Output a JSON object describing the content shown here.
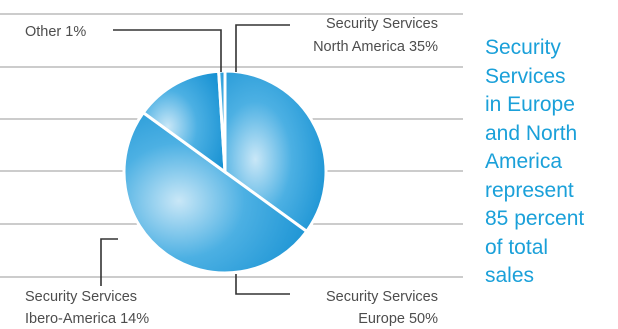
{
  "chart_data": {
    "type": "pie",
    "slices": [
      {
        "label_lines": [
          "Security Services",
          "North America 35%"
        ],
        "value": 35
      },
      {
        "label_lines": [
          "Security Services",
          "Europe 50%"
        ],
        "value": 50
      },
      {
        "label_lines": [
          "Security Services",
          "Ibero-America 14%"
        ],
        "value": 14
      },
      {
        "label_lines": [
          "Other 1%"
        ],
        "value": 1
      }
    ],
    "grid": true,
    "colors": {
      "fill_center": "#c9e7f7",
      "fill_mid": "#4cb0e3",
      "fill_edge": "#1590d2",
      "gridline": "#9a9a9a",
      "leader": "#333333"
    }
  },
  "side_note": {
    "lines": [
      "Security",
      "Services",
      "in Europe",
      "and North",
      "America",
      "represent",
      "85 percent",
      "of total",
      "sales"
    ],
    "color": "#1aa0d9"
  }
}
